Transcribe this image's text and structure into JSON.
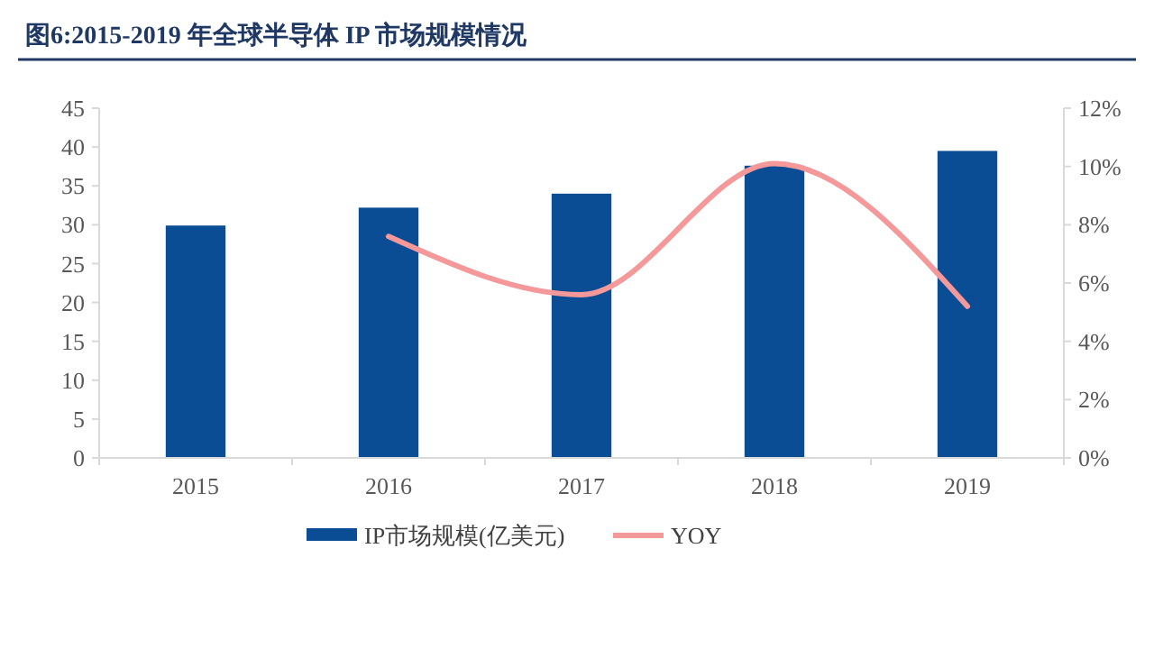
{
  "chart_data": {
    "type": "bar",
    "title": "图6:2015-2019 年全球半导体 IP 市场规模情况",
    "categories": [
      "2015",
      "2016",
      "2017",
      "2018",
      "2019"
    ],
    "series": [
      {
        "name": "IP市场规模(亿美元)",
        "color": "#0a4d94",
        "values": [
          29.9,
          32.2,
          34.0,
          37.6,
          39.5
        ]
      },
      {
        "name": "YOY",
        "type": "line",
        "axis": "y2",
        "color": "#f4989a",
        "values": [
          null,
          7.6,
          5.6,
          10.1,
          5.2
        ]
      }
    ],
    "ylim": [
      0,
      45
    ],
    "yticks": [
      0,
      5,
      10,
      15,
      20,
      25,
      30,
      35,
      40,
      45
    ],
    "y2lim": [
      0,
      12
    ],
    "y2ticks": [
      {
        "value": 0,
        "label": "0%"
      },
      {
        "value": 2,
        "label": "2%"
      },
      {
        "value": 4,
        "label": "4%"
      },
      {
        "value": 6,
        "label": "6%"
      },
      {
        "value": 8,
        "label": "8%"
      },
      {
        "value": 10,
        "label": "10%"
      },
      {
        "value": 12,
        "label": "12%"
      }
    ],
    "legend": "bottom",
    "grid": false
  }
}
